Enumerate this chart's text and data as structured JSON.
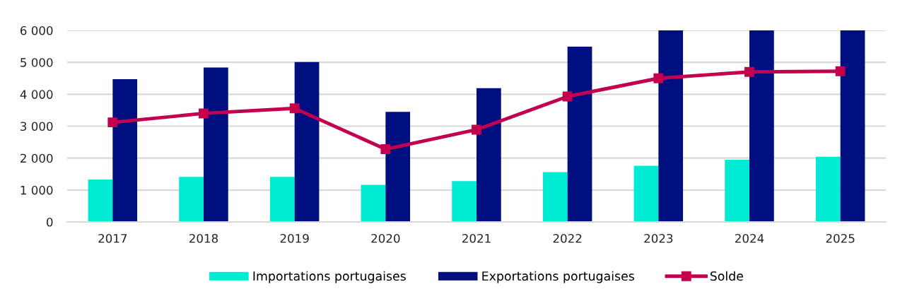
{
  "chart_data": {
    "type": "bar",
    "categories": [
      "2017",
      "2018",
      "2019",
      "2020",
      "2021",
      "2022",
      "2023",
      "2024",
      "2025"
    ],
    "series": [
      {
        "name": "Importations portugaises",
        "color": "#00ebd3",
        "values": [
          1330,
          1410,
          1410,
          1160,
          1280,
          1560,
          1760,
          1950,
          2040
        ]
      },
      {
        "name": "Exportations portugaises",
        "color": "#000f80",
        "values": [
          4470,
          4840,
          5010,
          3450,
          4190,
          5490,
          6000,
          6000,
          6000
        ]
      },
      {
        "name": "Solde",
        "type": "line",
        "color": "#c3004e",
        "marker": "square",
        "line_style": "solid",
        "values": [
          3120,
          3400,
          3560,
          2280,
          2890,
          3930,
          4500,
          4700,
          4720
        ]
      }
    ],
    "ylim": [
      0,
      6000
    ],
    "yticks": [
      0,
      {
        "value": 1000,
        "label": "1 000"
      },
      {
        "value": 2000,
        "label": "2 000"
      },
      {
        "value": 3000,
        "label": "3 000"
      },
      {
        "value": 4000,
        "label": "4 000"
      },
      {
        "value": 5000,
        "label": "5 000"
      },
      {
        "value": 6000,
        "label": "6 000"
      }
    ],
    "grid": "y",
    "legend": "bottom"
  }
}
